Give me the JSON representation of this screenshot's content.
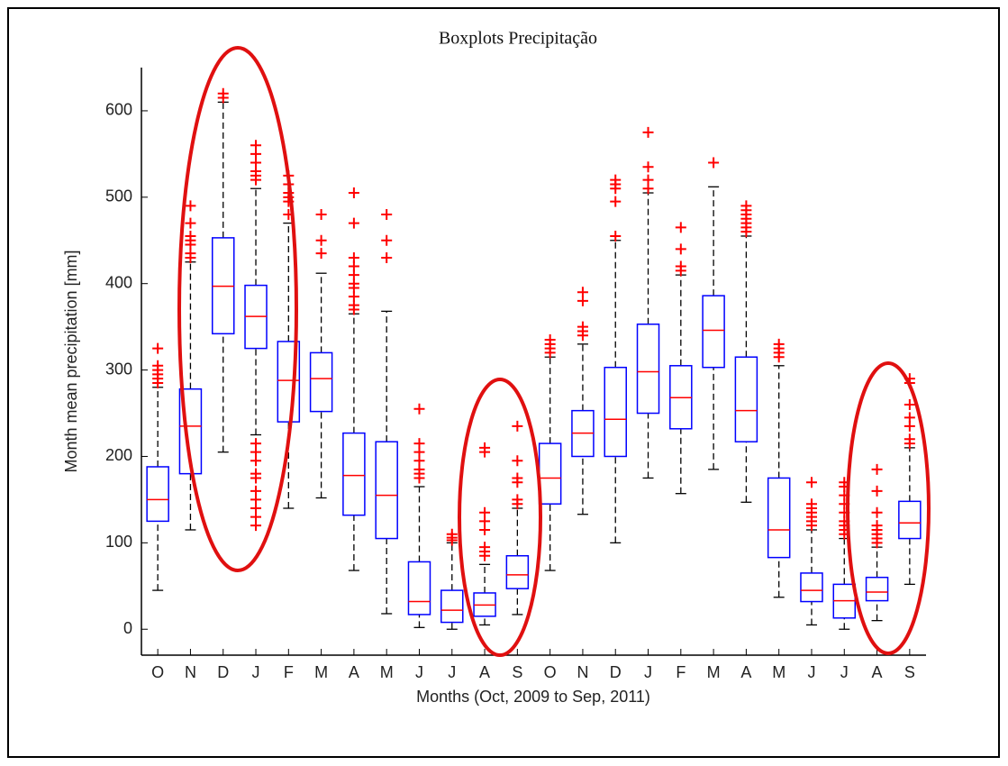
{
  "chart_data": {
    "type": "boxplot",
    "title": "Boxplots Precipitação",
    "xlabel": "Months (Oct, 2009 to Sep, 2011)",
    "ylabel": "Month mean precipitation [mm]",
    "categories": [
      "O",
      "N",
      "D",
      "J",
      "F",
      "M",
      "A",
      "M",
      "J",
      "J",
      "A",
      "S",
      "O",
      "N",
      "D",
      "J",
      "F",
      "M",
      "A",
      "M",
      "J",
      "J",
      "A",
      "S"
    ],
    "ylim": [
      -30,
      650
    ],
    "yticks": [
      0,
      100,
      200,
      300,
      400,
      500,
      600
    ],
    "box_color": "#0000ff",
    "median_color": "#ff0000",
    "outlier_color": "#ff0000",
    "whisker_color": "#000000",
    "boxes": [
      {
        "whisker_low": 45,
        "q1": 125,
        "median": 150,
        "q3": 188,
        "whisker_high": 280,
        "outliers": [
          285,
          290,
          295,
          300,
          305,
          325
        ]
      },
      {
        "whisker_low": 115,
        "q1": 180,
        "median": 235,
        "q3": 278,
        "whisker_high": 425,
        "outliers": [
          430,
          435,
          445,
          450,
          455,
          470,
          490
        ]
      },
      {
        "whisker_low": 205,
        "q1": 342,
        "median": 397,
        "q3": 453,
        "whisker_high": 610,
        "outliers": [
          615,
          620
        ]
      },
      {
        "whisker_low": 225,
        "q1": 325,
        "median": 362,
        "q3": 398,
        "whisker_high": 510,
        "outliers": [
          120,
          130,
          140,
          150,
          160,
          175,
          180,
          195,
          205,
          215,
          520,
          525,
          530,
          540,
          550,
          560
        ]
      },
      {
        "whisker_low": 140,
        "q1": 240,
        "median": 288,
        "q3": 333,
        "whisker_high": 470,
        "outliers": [
          480,
          495,
          500,
          505,
          515,
          525
        ]
      },
      {
        "whisker_low": 152,
        "q1": 252,
        "median": 290,
        "q3": 320,
        "whisker_high": 412,
        "outliers": [
          435,
          450,
          480
        ]
      },
      {
        "whisker_low": 68,
        "q1": 132,
        "median": 178,
        "q3": 227,
        "whisker_high": 365,
        "outliers": [
          370,
          375,
          385,
          395,
          400,
          410,
          420,
          430,
          470,
          505
        ]
      },
      {
        "whisker_low": 18,
        "q1": 105,
        "median": 155,
        "q3": 217,
        "whisker_high": 368,
        "outliers": [
          430,
          450,
          480
        ]
      },
      {
        "whisker_low": 2,
        "q1": 17,
        "median": 32,
        "q3": 78,
        "whisker_high": 165,
        "outliers": [
          175,
          180,
          185,
          195,
          205,
          215,
          255
        ]
      },
      {
        "whisker_low": 0,
        "q1": 8,
        "median": 22,
        "q3": 45,
        "whisker_high": 100,
        "outliers": [
          103,
          106,
          110
        ]
      },
      {
        "whisker_low": 5,
        "q1": 15,
        "median": 28,
        "q3": 42,
        "whisker_high": 75,
        "outliers": [
          85,
          90,
          95,
          115,
          125,
          135,
          205,
          210
        ]
      },
      {
        "whisker_low": 17,
        "q1": 47,
        "median": 63,
        "q3": 85,
        "whisker_high": 140,
        "outliers": [
          145,
          150,
          170,
          175,
          195,
          235
        ]
      },
      {
        "whisker_low": 68,
        "q1": 145,
        "median": 175,
        "q3": 215,
        "whisker_high": 315,
        "outliers": [
          320,
          325,
          330,
          335
        ]
      },
      {
        "whisker_low": 133,
        "q1": 200,
        "median": 227,
        "q3": 253,
        "whisker_high": 330,
        "outliers": [
          340,
          345,
          350,
          380,
          390
        ]
      },
      {
        "whisker_low": 100,
        "q1": 200,
        "median": 243,
        "q3": 303,
        "whisker_high": 450,
        "outliers": [
          455,
          495,
          510,
          515,
          520
        ]
      },
      {
        "whisker_low": 175,
        "q1": 250,
        "median": 298,
        "q3": 353,
        "whisker_high": 505,
        "outliers": [
          510,
          520,
          535,
          575
        ]
      },
      {
        "whisker_low": 157,
        "q1": 232,
        "median": 268,
        "q3": 305,
        "whisker_high": 410,
        "outliers": [
          415,
          420,
          440,
          465
        ]
      },
      {
        "whisker_low": 185,
        "q1": 303,
        "median": 346,
        "q3": 386,
        "whisker_high": 512,
        "outliers": [
          540
        ]
      },
      {
        "whisker_low": 147,
        "q1": 217,
        "median": 253,
        "q3": 315,
        "whisker_high": 455,
        "outliers": [
          460,
          465,
          470,
          475,
          480,
          485,
          490
        ]
      },
      {
        "whisker_low": 37,
        "q1": 83,
        "median": 115,
        "q3": 175,
        "whisker_high": 305,
        "outliers": [
          315,
          320,
          325,
          330
        ]
      },
      {
        "whisker_low": 5,
        "q1": 32,
        "median": 45,
        "q3": 65,
        "whisker_high": 115,
        "outliers": [
          120,
          125,
          130,
          135,
          140,
          145,
          170
        ]
      },
      {
        "whisker_low": 0,
        "q1": 13,
        "median": 33,
        "q3": 52,
        "whisker_high": 105,
        "outliers": [
          110,
          115,
          120,
          125,
          135,
          145,
          155,
          165,
          170
        ]
      },
      {
        "whisker_low": 10,
        "q1": 33,
        "median": 43,
        "q3": 60,
        "whisker_high": 95,
        "outliers": [
          100,
          105,
          110,
          115,
          120,
          135,
          160,
          185
        ]
      },
      {
        "whisker_low": 52,
        "q1": 105,
        "median": 123,
        "q3": 148,
        "whisker_high": 210,
        "outliers": [
          215,
          220,
          235,
          245,
          260,
          285,
          290
        ]
      }
    ]
  }
}
